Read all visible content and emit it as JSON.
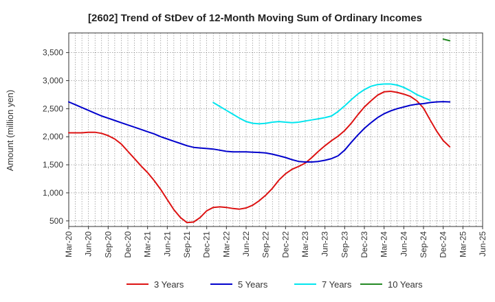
{
  "chart_data": {
    "type": "line",
    "title": "[2602]  Trend of StDev of 12-Month Moving Sum of Ordinary Incomes",
    "xlabel": "",
    "ylabel": "Amount (million yen)",
    "ylim": [
      400,
      3850
    ],
    "y_ticks": [
      500,
      1000,
      1500,
      2000,
      2500,
      3000,
      3500
    ],
    "y_tick_labels": [
      "500",
      "1,000",
      "1,500",
      "2,000",
      "2,500",
      "3,000",
      "3,500"
    ],
    "x_tick_labels": [
      "Mar-20",
      "Jun-20",
      "Sep-20",
      "Dec-20",
      "Mar-21",
      "Jun-21",
      "Sep-21",
      "Dec-21",
      "Mar-22",
      "Jun-22",
      "Sep-22",
      "Dec-22",
      "Mar-23",
      "Jun-23",
      "Sep-23",
      "Dec-23",
      "Mar-24",
      "Jun-24",
      "Sep-24",
      "Dec-24",
      "Mar-25",
      "Jun-25"
    ],
    "grid": true,
    "legend_position": "bottom",
    "series": [
      {
        "name": "3 Years",
        "color": "#dd1111",
        "start": 0,
        "values": [
          2070,
          2070,
          2070,
          2080,
          2080,
          2060,
          2020,
          1960,
          1870,
          1740,
          1610,
          1480,
          1360,
          1220,
          1060,
          880,
          700,
          560,
          470,
          480,
          560,
          680,
          740,
          750,
          740,
          720,
          710,
          730,
          780,
          860,
          960,
          1080,
          1230,
          1340,
          1420,
          1470,
          1530,
          1630,
          1740,
          1840,
          1930,
          2010,
          2110,
          2240,
          2390,
          2530,
          2640,
          2740,
          2800,
          2810,
          2790,
          2760,
          2720,
          2640,
          2510,
          2300,
          2100,
          1930,
          1820
        ]
      },
      {
        "name": "5 Years",
        "color": "#0000cc",
        "start": 0,
        "values": [
          2620,
          2570,
          2520,
          2470,
          2420,
          2370,
          2330,
          2290,
          2250,
          2210,
          2170,
          2130,
          2090,
          2050,
          2000,
          1960,
          1920,
          1880,
          1840,
          1810,
          1800,
          1790,
          1780,
          1760,
          1740,
          1730,
          1730,
          1730,
          1725,
          1720,
          1710,
          1690,
          1660,
          1630,
          1590,
          1560,
          1550,
          1550,
          1560,
          1580,
          1610,
          1660,
          1760,
          1900,
          2030,
          2150,
          2250,
          2340,
          2410,
          2460,
          2500,
          2530,
          2560,
          2580,
          2590,
          2610,
          2620,
          2625,
          2620
        ]
      },
      {
        "name": "7 Years",
        "color": "#00e5ee",
        "start": 22,
        "values": [
          2610,
          2540,
          2470,
          2400,
          2330,
          2270,
          2240,
          2230,
          2240,
          2260,
          2270,
          2260,
          2250,
          2260,
          2280,
          2300,
          2320,
          2340,
          2370,
          2450,
          2550,
          2660,
          2760,
          2840,
          2900,
          2930,
          2940,
          2940,
          2920,
          2880,
          2820,
          2750,
          2700,
          2650
        ]
      },
      {
        "name": "10 Years",
        "color": "#228822",
        "start": 57,
        "values": [
          3740,
          3710
        ]
      }
    ]
  }
}
